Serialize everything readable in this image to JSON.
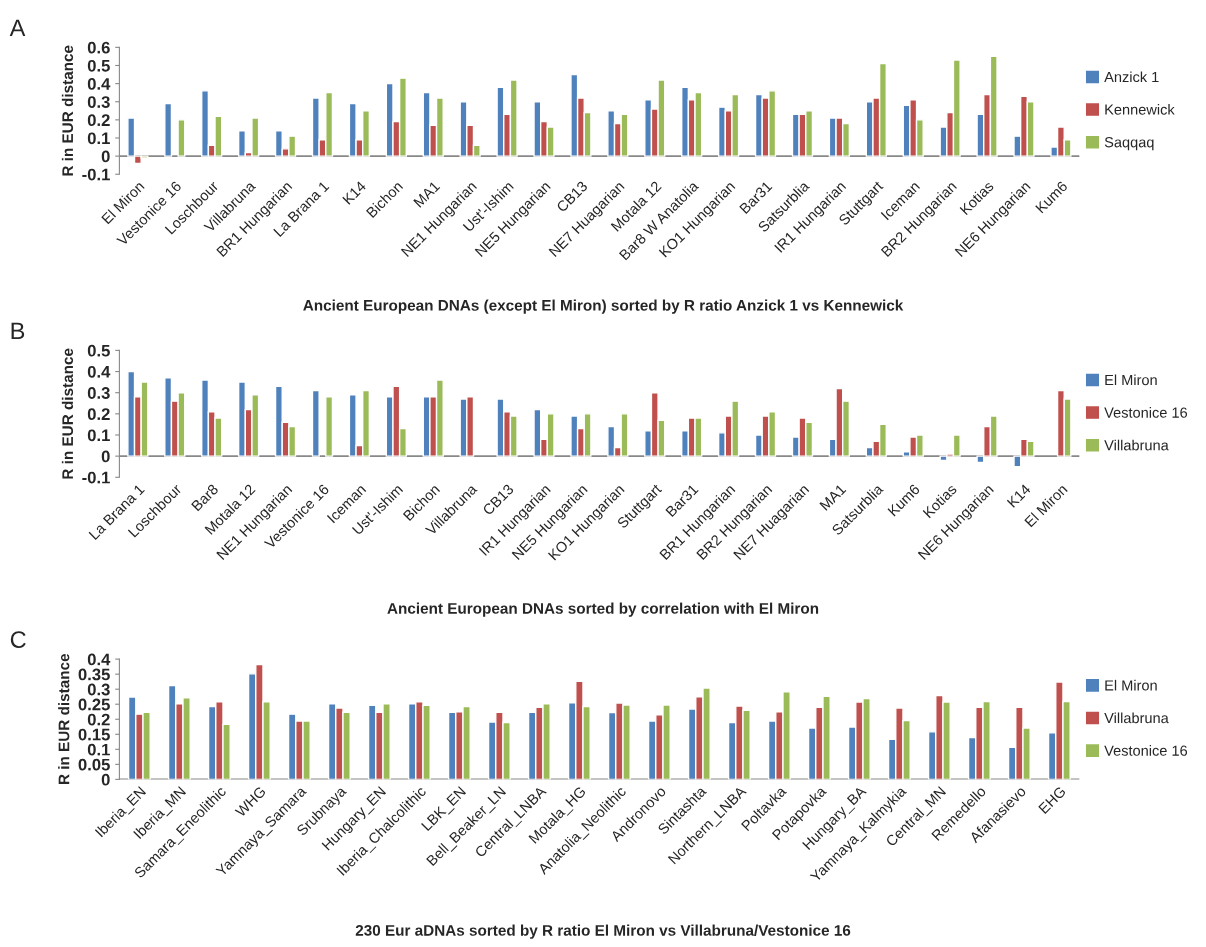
{
  "chart_data": [
    {
      "type": "bar",
      "title": "A",
      "xlabel": "Ancient European DNAs (except El Miron) sorted by R ratio Anzick 1 vs Kennewick",
      "ylabel": "R in EUR distance",
      "categories": [
        "El Miron",
        "Vestonice 16",
        "Loschbour",
        "Villabruna",
        "BR1 Hungarian",
        "La Brana 1",
        "K14",
        "Bichon",
        "MA1",
        "NE1 Hungarian",
        "Ust'-Ishim",
        "NE5 Hungarian",
        "CB13",
        "NE7 Huagarian",
        "Motala 12",
        "Bar8 W Anatolia",
        "KO1 Hungarian",
        "Bar31",
        "Satsurblia",
        "IR1 Hungarian",
        "Stuttgart",
        "Iceman",
        "BR2 Hungarian",
        "Kotias",
        "NE6 Hungarian",
        "Kum6"
      ],
      "series": [
        {
          "name": "Anzick 1",
          "color": "#4f81bd",
          "values": [
            0.21,
            0.29,
            0.36,
            0.14,
            0.14,
            0.32,
            0.29,
            0.4,
            0.35,
            0.3,
            0.38,
            0.3,
            0.45,
            0.25,
            0.31,
            0.38,
            0.27,
            0.34,
            0.23,
            0.21,
            0.3,
            0.28,
            0.16,
            0.23,
            0.11,
            0.05
          ]
        },
        {
          "name": "Kennewick",
          "color": "#c0504d",
          "values": [
            -0.04,
            null,
            0.06,
            0.02,
            0.04,
            0.09,
            0.09,
            0.19,
            0.17,
            0.17,
            0.23,
            0.19,
            0.32,
            0.18,
            0.26,
            0.31,
            0.25,
            0.32,
            0.23,
            0.21,
            0.32,
            0.31,
            0.24,
            0.34,
            0.33,
            0.16
          ]
        },
        {
          "name": "Saqqaq",
          "color": "#9bbb59",
          "values": [
            -0.01,
            0.2,
            0.22,
            0.21,
            0.11,
            0.35,
            0.25,
            0.43,
            0.32,
            0.06,
            0.42,
            0.16,
            0.24,
            0.23,
            0.42,
            0.35,
            0.34,
            0.36,
            0.25,
            0.18,
            0.51,
            0.2,
            0.53,
            0.55,
            0.3,
            0.09
          ]
        }
      ],
      "ylim": [
        -0.1,
        0.6
      ],
      "yticks": [
        -0.1,
        0,
        0.1,
        0.2,
        0.3,
        0.4,
        0.5,
        0.6
      ],
      "legend": "right"
    },
    {
      "type": "bar",
      "title": "B",
      "xlabel": "Ancient European DNAs sorted by correlation with El Miron",
      "ylabel": "R in EUR distance",
      "categories": [
        "La Brana 1",
        "Loschbour",
        "Bar8",
        "Motala 12",
        "NE1 Hungarian",
        "Vestonice 16",
        "Iceman",
        "Ust'-Ishim",
        "Bichon",
        "Villabruna",
        "CB13",
        "IR1 Hungarian",
        "NE5 Hungarian",
        "KO1 Hungarian",
        "Stuttgart",
        "Bar31",
        "BR1 Hungarian",
        "BR2 Hungarian",
        "NE7 Huagarian",
        "MA1",
        "Satsurblia",
        "Kum6",
        "Kotias",
        "NE6 Hungarian",
        "K14",
        "El Miron"
      ],
      "series": [
        {
          "name": "El Miron",
          "color": "#4f81bd",
          "values": [
            0.4,
            0.37,
            0.36,
            0.35,
            0.33,
            0.31,
            0.29,
            0.28,
            0.28,
            0.27,
            0.27,
            0.22,
            0.19,
            0.14,
            0.12,
            0.12,
            0.11,
            0.1,
            0.09,
            0.08,
            0.04,
            0.02,
            -0.02,
            -0.03,
            -0.05,
            null
          ]
        },
        {
          "name": "Vestonice 16",
          "color": "#c0504d",
          "values": [
            0.28,
            0.26,
            0.21,
            0.22,
            0.16,
            null,
            0.05,
            0.33,
            0.28,
            0.28,
            0.21,
            0.08,
            0.13,
            0.04,
            0.3,
            0.18,
            0.19,
            0.19,
            0.18,
            0.32,
            0.07,
            0.09,
            0.01,
            0.14,
            0.08,
            0.31
          ]
        },
        {
          "name": "Villabruna",
          "color": "#9bbb59",
          "values": [
            0.35,
            0.3,
            0.18,
            0.29,
            0.14,
            0.28,
            0.31,
            0.13,
            0.36,
            null,
            0.19,
            0.2,
            0.2,
            0.2,
            0.17,
            0.18,
            0.26,
            0.21,
            0.16,
            0.26,
            0.15,
            0.1,
            0.1,
            0.19,
            0.07,
            0.27
          ]
        }
      ],
      "ylim": [
        -0.1,
        0.5
      ],
      "yticks": [
        -0.1,
        0,
        0.1,
        0.2,
        0.3,
        0.4,
        0.5
      ],
      "legend": "right"
    },
    {
      "type": "bar",
      "title": "C",
      "xlabel": "230 Eur aDNAs sorted by R ratio El Miron vs Villabruna/Vestonice 16",
      "ylabel": "R in EUR distance",
      "categories": [
        "Iberia_EN",
        "Iberia_MN",
        "Samara_Eneolithic",
        "WHG",
        "Yamnaya_Samara",
        "Srubnaya",
        "Hungary_EN",
        "Iberia_Chalcolithic",
        "LBK_EN",
        "Bell_Beaker_LN",
        "Central_LNBA",
        "Motala_HG",
        "Anatolia_Neolithic",
        "Andronovo",
        "Sintashta",
        "Northern_LNBA",
        "Poltavka",
        "Potapovka",
        "Hungary_BA",
        "Yamnaya_Kalmykia",
        "Central_MN",
        "Remedello",
        "Afanasievo",
        "EHG"
      ],
      "series": [
        {
          "name": "El Miron",
          "color": "#4f81bd",
          "values": [
            0.274,
            0.312,
            0.242,
            0.351,
            0.217,
            0.251,
            0.246,
            0.251,
            0.223,
            0.191,
            0.223,
            0.255,
            0.222,
            0.194,
            0.234,
            0.189,
            0.194,
            0.171,
            0.174,
            0.133,
            0.158,
            0.139,
            0.107,
            0.155
          ]
        },
        {
          "name": "Villabruna",
          "color": "#c0504d",
          "values": [
            0.217,
            0.251,
            0.258,
            0.382,
            0.194,
            0.237,
            0.223,
            0.258,
            0.225,
            0.223,
            0.24,
            0.326,
            0.254,
            0.215,
            0.275,
            0.244,
            0.225,
            0.24,
            0.257,
            0.237,
            0.279,
            0.24,
            0.24,
            0.324
          ]
        },
        {
          "name": "Vestonice 16",
          "color": "#9bbb59",
          "values": [
            0.223,
            0.271,
            0.183,
            0.258,
            0.194,
            0.223,
            0.251,
            0.246,
            0.242,
            0.189,
            0.251,
            0.242,
            0.247,
            0.247,
            0.304,
            0.23,
            0.291,
            0.276,
            0.269,
            0.196,
            0.257,
            0.259,
            0.171,
            0.259
          ]
        }
      ],
      "ylim": [
        0,
        0.4
      ],
      "yticks": [
        0,
        0.05,
        0.1,
        0.15,
        0.2,
        0.25,
        0.3,
        0.35,
        0.4
      ],
      "legend": "right"
    }
  ]
}
